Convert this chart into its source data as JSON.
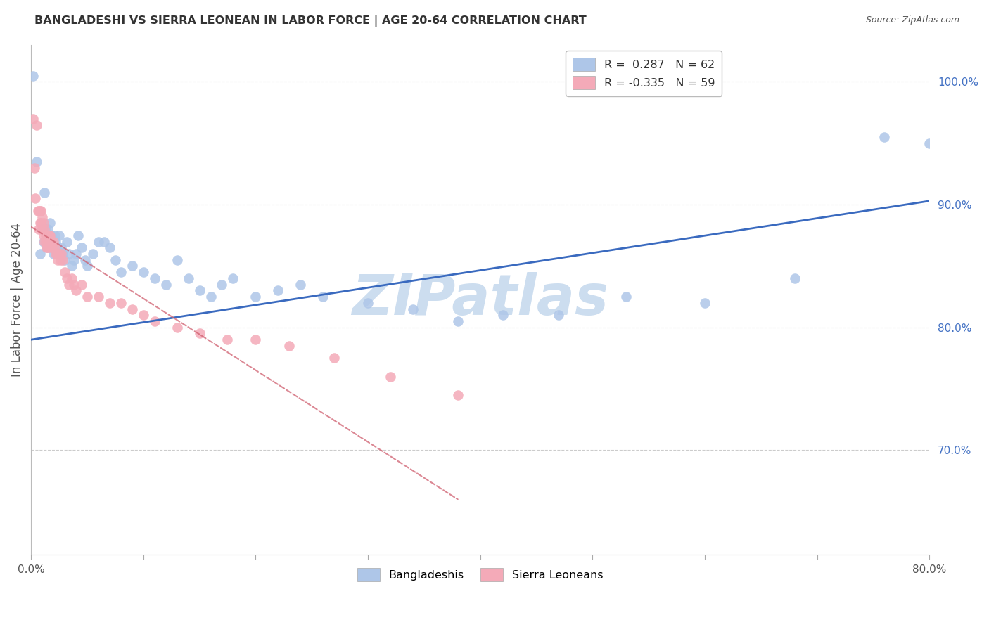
{
  "title": "BANGLADESHI VS SIERRA LEONEAN IN LABOR FORCE | AGE 20-64 CORRELATION CHART",
  "source": "Source: ZipAtlas.com",
  "ylabel": "In Labor Force | Age 20-64",
  "xlim": [
    0.0,
    0.8
  ],
  "ylim": [
    0.615,
    1.03
  ],
  "yticks_right": [
    0.7,
    0.8,
    0.9,
    1.0
  ],
  "ytick_right_labels": [
    "70.0%",
    "80.0%",
    "90.0%",
    "100.0%"
  ],
  "watermark": "ZIPatlas",
  "watermark_color": "#ccddef",
  "blue_color": "#aec6e8",
  "pink_color": "#f4aab8",
  "blue_line_color": "#3a6abf",
  "pink_line_color": "#d06070",
  "background_color": "#ffffff",
  "grid_color": "#cccccc",
  "title_color": "#333333",
  "axis_label_color": "#555555",
  "right_axis_color": "#4472c4",
  "blue_x": [
    0.002,
    0.005,
    0.008,
    0.01,
    0.011,
    0.012,
    0.013,
    0.014,
    0.015,
    0.016,
    0.017,
    0.018,
    0.019,
    0.02,
    0.021,
    0.022,
    0.023,
    0.024,
    0.025,
    0.026,
    0.027,
    0.028,
    0.03,
    0.032,
    0.034,
    0.036,
    0.038,
    0.04,
    0.042,
    0.045,
    0.048,
    0.05,
    0.055,
    0.06,
    0.065,
    0.07,
    0.075,
    0.08,
    0.09,
    0.1,
    0.11,
    0.12,
    0.13,
    0.14,
    0.15,
    0.16,
    0.17,
    0.18,
    0.2,
    0.22,
    0.24,
    0.26,
    0.3,
    0.34,
    0.38,
    0.42,
    0.47,
    0.53,
    0.6,
    0.68,
    0.76,
    0.8
  ],
  "blue_y": [
    1.005,
    0.935,
    0.86,
    0.88,
    0.87,
    0.91,
    0.88,
    0.865,
    0.88,
    0.87,
    0.885,
    0.875,
    0.865,
    0.86,
    0.875,
    0.87,
    0.86,
    0.865,
    0.875,
    0.86,
    0.865,
    0.86,
    0.855,
    0.87,
    0.86,
    0.85,
    0.855,
    0.86,
    0.875,
    0.865,
    0.855,
    0.85,
    0.86,
    0.87,
    0.87,
    0.865,
    0.855,
    0.845,
    0.85,
    0.845,
    0.84,
    0.835,
    0.855,
    0.84,
    0.83,
    0.825,
    0.835,
    0.84,
    0.825,
    0.83,
    0.835,
    0.825,
    0.82,
    0.815,
    0.805,
    0.81,
    0.81,
    0.825,
    0.82,
    0.84,
    0.955,
    0.95
  ],
  "pink_x": [
    0.002,
    0.003,
    0.004,
    0.005,
    0.006,
    0.007,
    0.007,
    0.008,
    0.008,
    0.009,
    0.009,
    0.01,
    0.01,
    0.011,
    0.011,
    0.012,
    0.012,
    0.013,
    0.013,
    0.014,
    0.014,
    0.015,
    0.015,
    0.016,
    0.016,
    0.017,
    0.018,
    0.019,
    0.02,
    0.021,
    0.022,
    0.023,
    0.024,
    0.025,
    0.026,
    0.027,
    0.028,
    0.03,
    0.032,
    0.034,
    0.036,
    0.038,
    0.04,
    0.045,
    0.05,
    0.06,
    0.07,
    0.08,
    0.09,
    0.1,
    0.11,
    0.13,
    0.15,
    0.175,
    0.2,
    0.23,
    0.27,
    0.32,
    0.38
  ],
  "pink_y": [
    0.97,
    0.93,
    0.905,
    0.965,
    0.895,
    0.88,
    0.895,
    0.885,
    0.895,
    0.885,
    0.895,
    0.89,
    0.88,
    0.885,
    0.875,
    0.88,
    0.87,
    0.875,
    0.87,
    0.875,
    0.865,
    0.87,
    0.865,
    0.875,
    0.865,
    0.875,
    0.87,
    0.865,
    0.87,
    0.865,
    0.86,
    0.86,
    0.855,
    0.86,
    0.855,
    0.86,
    0.855,
    0.845,
    0.84,
    0.835,
    0.84,
    0.835,
    0.83,
    0.835,
    0.825,
    0.825,
    0.82,
    0.82,
    0.815,
    0.81,
    0.805,
    0.8,
    0.795,
    0.79,
    0.79,
    0.785,
    0.775,
    0.76,
    0.745
  ],
  "blue_trend_x": [
    0.0,
    0.8
  ],
  "blue_trend_y": [
    0.79,
    0.903
  ],
  "pink_trend_x": [
    0.0,
    0.38
  ],
  "pink_trend_y": [
    0.882,
    0.66
  ]
}
